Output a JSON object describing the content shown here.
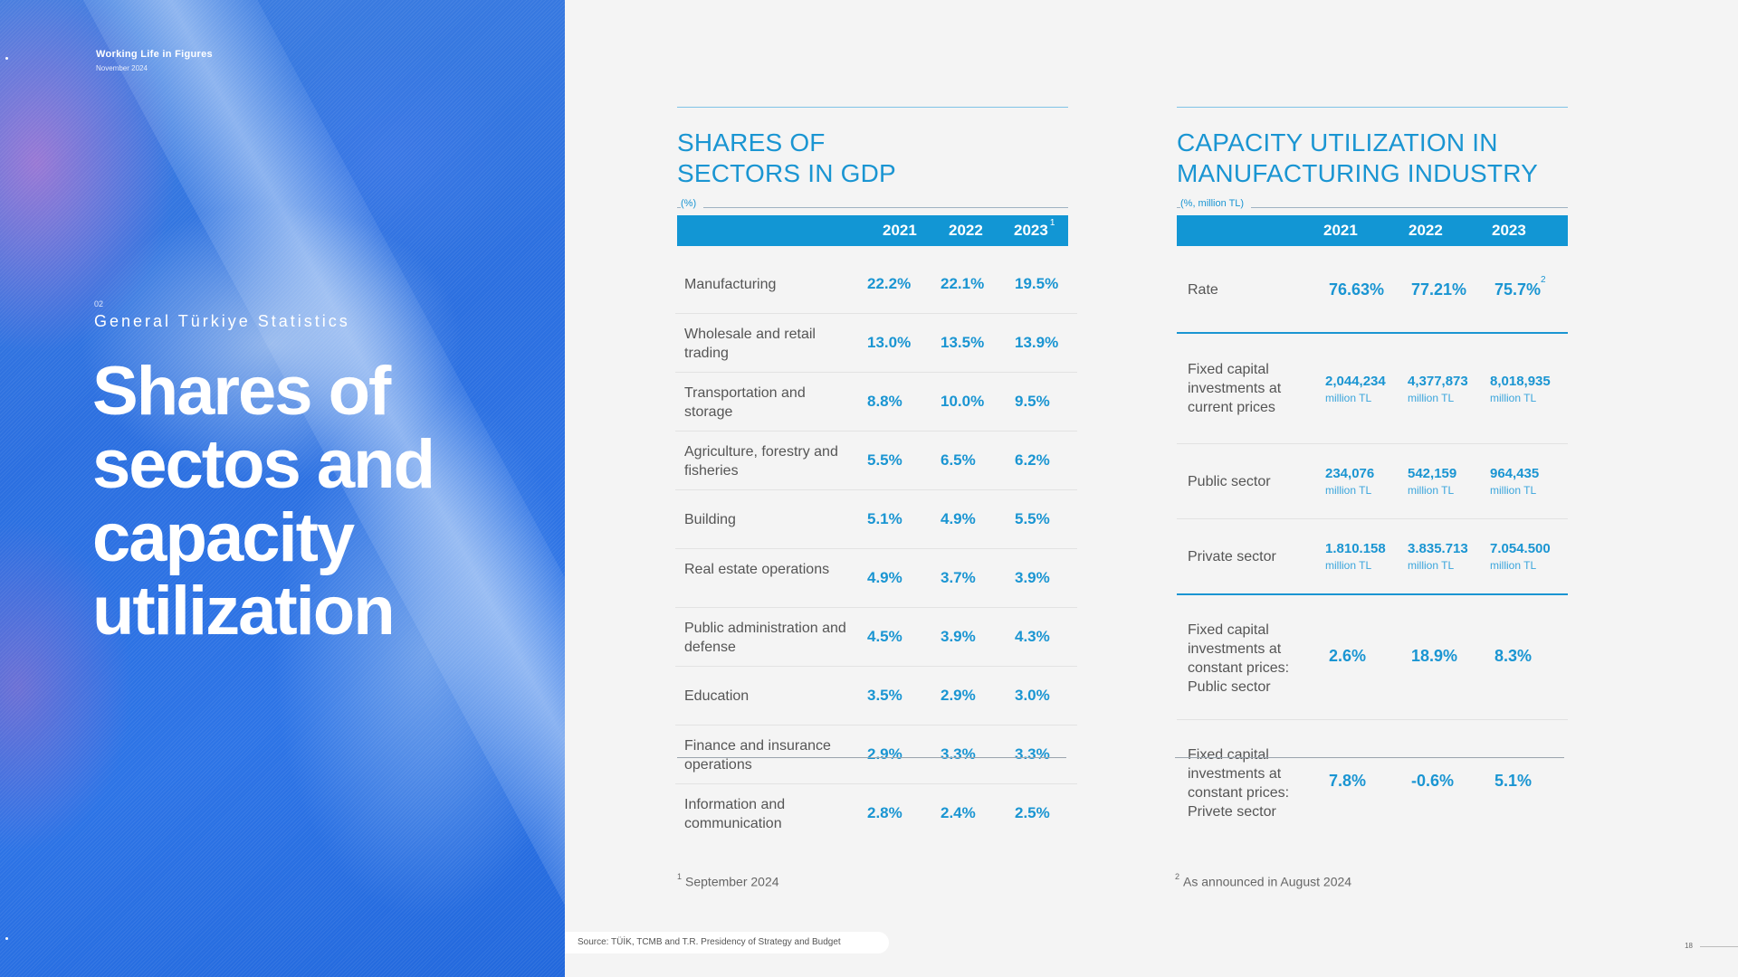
{
  "hero": {
    "brand": "Working Life in Figures",
    "date": "November 2024",
    "section_number": "02",
    "section_title": "General Türkiye Statistics",
    "title": "Shares of sectos and capacity utilization"
  },
  "gdp_table": {
    "title": "SHARES OF SECTORS IN GDP",
    "unit": "(%)",
    "columns": [
      "2021",
      "2022",
      "2023"
    ],
    "last_column_note": "1",
    "rows": [
      {
        "label": "Manufacturing",
        "values": [
          "22.2%",
          "22.1%",
          "19.5%"
        ]
      },
      {
        "label": "Wholesale and retail trading",
        "values": [
          "13.0%",
          "13.5%",
          "13.9%"
        ]
      },
      {
        "label": "Transportation and storage",
        "values": [
          "8.8%",
          "10.0%",
          "9.5%"
        ]
      },
      {
        "label": "Agriculture, forestry and fisheries",
        "values": [
          "5.5%",
          "6.5%",
          "6.2%"
        ]
      },
      {
        "label": "Building",
        "values": [
          "5.1%",
          "4.9%",
          "5.5%"
        ]
      },
      {
        "label": "Real estate operations",
        "values": [
          "4.9%",
          "3.7%",
          "3.9%"
        ]
      },
      {
        "label": "Public administration and defense",
        "values": [
          "4.5%",
          "3.9%",
          "4.3%"
        ]
      },
      {
        "label": "Education",
        "values": [
          "3.5%",
          "2.9%",
          "3.0%"
        ]
      },
      {
        "label": "Finance and insurance operations",
        "values": [
          "2.9%",
          "3.3%",
          "3.3%"
        ]
      },
      {
        "label": "Information and communication",
        "values": [
          "2.8%",
          "2.4%",
          "2.5%"
        ]
      }
    ],
    "footnote_mark": "1",
    "footnote": "September 2024"
  },
  "capacity_table": {
    "title": "CAPACITY UTILIZATION IN MANUFACTURING INDUSTRY",
    "unit": "(%, million TL)",
    "columns": [
      "2021",
      "2022",
      "2023"
    ],
    "rate": {
      "label": "Rate",
      "values": [
        "76.63%",
        "77.21%",
        "75.7%"
      ],
      "note": "2"
    },
    "fixed_current": {
      "label": "Fixed capital investments at current prices",
      "values": [
        "2,044,234",
        "4,377,873",
        "8,018,935"
      ],
      "unit": "million TL"
    },
    "public_sector": {
      "label": "Public sector",
      "values": [
        "234,076",
        "542,159",
        "964,435"
      ],
      "unit": "million TL"
    },
    "private_sector": {
      "label": "Private sector",
      "values": [
        "1.810.158",
        "3.835.713",
        "7.054.500"
      ],
      "unit": "million TL"
    },
    "fixed_constant_public": {
      "label": "Fixed capital investments at constant prices: Public sector",
      "values": [
        "2.6%",
        "18.9%",
        "8.3%"
      ]
    },
    "fixed_constant_private": {
      "label": "Fixed capital investments at constant prices: Privete sector",
      "values": [
        "7.8%",
        "-0.6%",
        "5.1%"
      ]
    },
    "footnote_mark": "2",
    "footnote": "As announced in August 2024"
  },
  "source": "Source: TÜİK, TCMB and T.R. Presidency of Strategy and Budget",
  "page_number": "18"
}
